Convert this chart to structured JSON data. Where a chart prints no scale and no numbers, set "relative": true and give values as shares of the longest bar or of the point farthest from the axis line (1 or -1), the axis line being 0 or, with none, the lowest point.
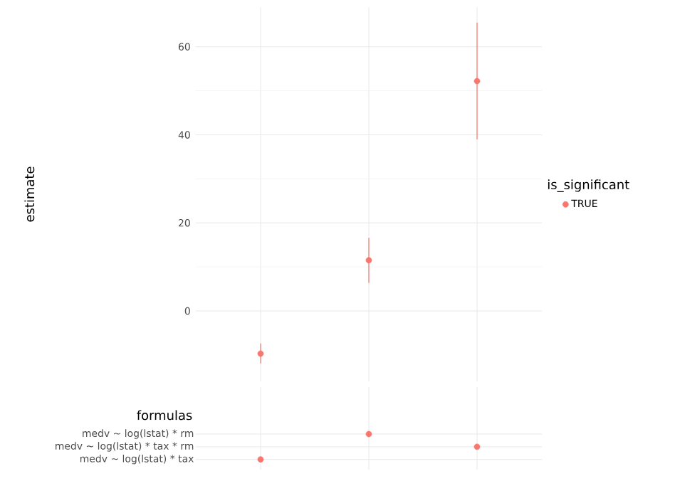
{
  "chart_data": [
    {
      "type": "scatter",
      "ylabel": "estimate",
      "legend_title": "is_significant",
      "categories": [
        null,
        null,
        null
      ],
      "series": [
        {
          "name": "TRUE",
          "color": "#f8766d",
          "values": [
            -9.7,
            11.5,
            52.2
          ],
          "errors": [
            [
              -11.9,
              -7.4
            ],
            [
              6.4,
              16.6
            ],
            [
              39.0,
              65.5
            ]
          ]
        }
      ],
      "ylim": [
        -16,
        69
      ],
      "yticks": [
        0,
        20,
        40,
        60
      ],
      "grid": true,
      "legend": "right",
      "marker": "circle"
    },
    {
      "type": "scatter",
      "orientation": "horizontal",
      "relative": true,
      "ylabel": "formulas",
      "categories": [
        "medv ~ log(lstat) * rm",
        "medv ~ log(lstat) * tax * rm",
        "medv ~ log(lstat) * tax"
      ],
      "series": [
        {
          "color": "#f8766d",
          "values": [
            0.5,
            1,
            0
          ]
        }
      ],
      "grid": true,
      "marker": "circle"
    }
  ]
}
